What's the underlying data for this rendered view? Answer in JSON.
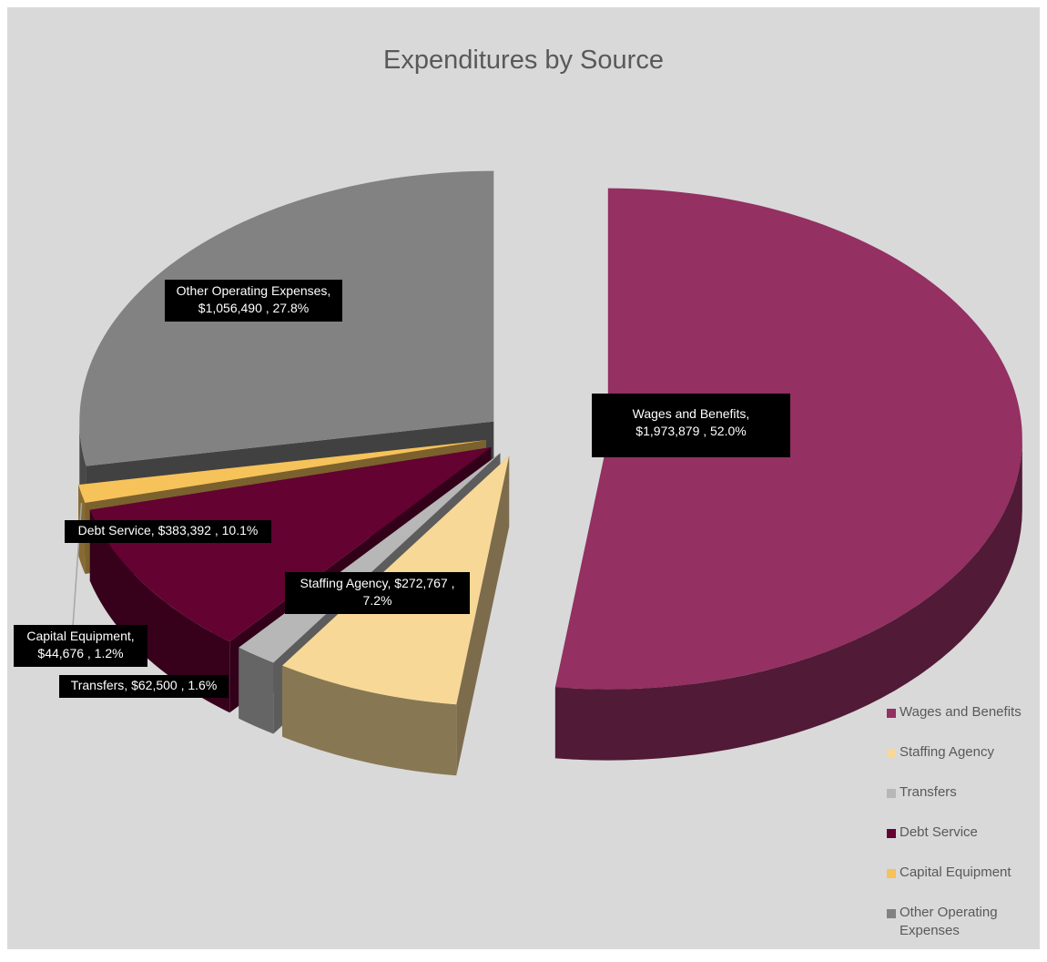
{
  "chart_data": {
    "type": "pie",
    "title": "Expenditures by Source",
    "categories": [
      "Wages and Benefits",
      "Staffing Agency",
      "Transfers",
      "Debt Service",
      "Capital Equipment",
      "Other Operating Expenses"
    ],
    "values": [
      1973879,
      272767,
      62500,
      383392,
      44676,
      1056490
    ],
    "percentages": [
      52.0,
      7.2,
      1.6,
      10.1,
      1.2,
      27.8
    ],
    "data_labels": [
      {
        "line1": "Wages and Benefits,",
        "line2": "$1,973,879 , 52.0%"
      },
      {
        "line1": "Staffing Agency,  $272,767 ,",
        "line2": "7.2%"
      },
      {
        "line1": "Transfers,  $62,500 , 1.6%",
        "line2": ""
      },
      {
        "line1": "Debt Service,  $383,392 , 10.1%",
        "line2": ""
      },
      {
        "line1": "Capital Equipment,",
        "line2": "$44,676 , 1.2%"
      },
      {
        "line1": "Other Operating Expenses,",
        "line2": "$1,056,490 , 27.8%"
      }
    ],
    "colors": [
      "#943062",
      "#f8d897",
      "#b7b7b7",
      "#640232",
      "#f6c25a",
      "#828282"
    ],
    "legend": {
      "position": "bottom-right",
      "items": [
        "Wages and Benefits",
        "Staffing Agency",
        "Transfers",
        "Debt Service",
        "Capital Equipment",
        "Other Operating Expenses"
      ]
    },
    "style": "3d-exploded"
  }
}
